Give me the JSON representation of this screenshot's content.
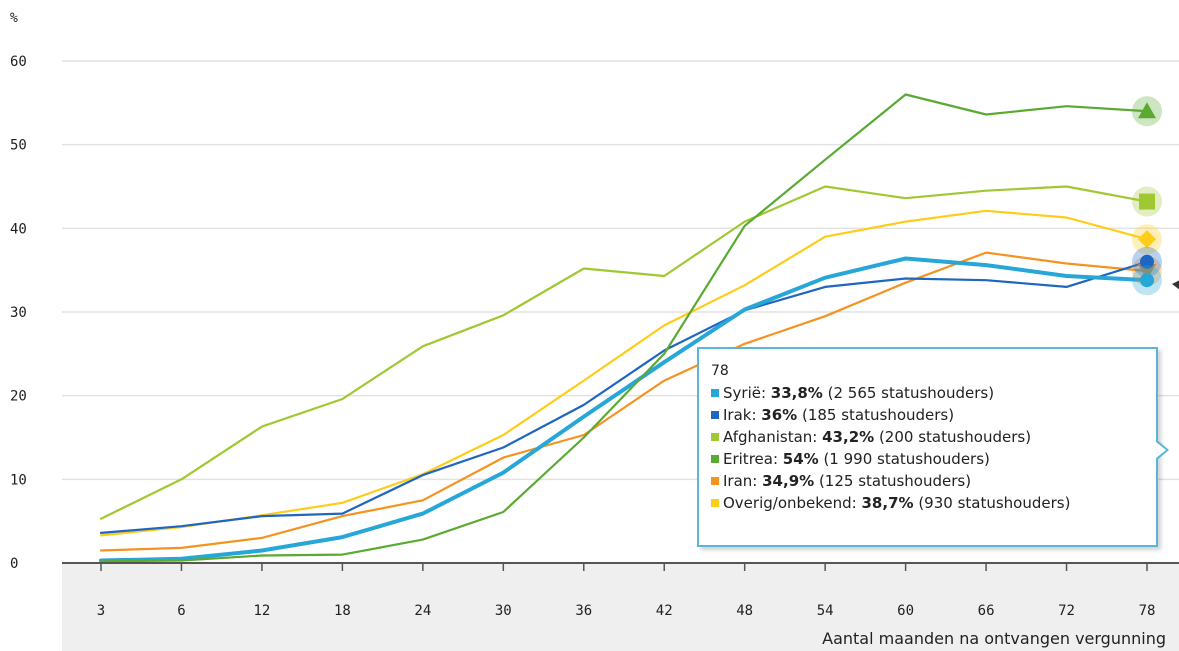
{
  "chart_data": {
    "type": "line",
    "title": "",
    "ylabel": "%",
    "xlabel": "Aantal maanden na ontvangen vergunning",
    "ylim": [
      0,
      60
    ],
    "yticks": [
      0,
      10,
      20,
      30,
      40,
      50,
      60
    ],
    "grid": true,
    "x": [
      3,
      6,
      12,
      18,
      24,
      30,
      36,
      42,
      48,
      54,
      60,
      66,
      72,
      78
    ],
    "series": [
      {
        "name": "Afghanistan",
        "color": "#a0c832",
        "marker": "square",
        "values": [
          5.3,
          10.0,
          16.3,
          19.6,
          25.9,
          29.6,
          35.2,
          34.3,
          40.8,
          45.0,
          43.6,
          44.5,
          45.0,
          43.2
        ]
      },
      {
        "name": "Overig/onbekend",
        "color": "#ffcc1a",
        "marker": "diamond",
        "values": [
          3.3,
          4.3,
          5.7,
          7.2,
          10.6,
          15.3,
          21.8,
          28.4,
          33.2,
          39.0,
          40.8,
          42.1,
          41.3,
          38.7
        ]
      },
      {
        "name": "Iran",
        "color": "#f59321",
        "marker": "triangle-down",
        "values": [
          1.5,
          1.8,
          3.0,
          5.6,
          7.5,
          12.6,
          15.3,
          21.8,
          26.2,
          29.5,
          33.5,
          37.1,
          35.8,
          34.9
        ]
      },
      {
        "name": "Irak",
        "color": "#1e66c1",
        "marker": "circle",
        "values": [
          3.6,
          4.4,
          5.6,
          5.9,
          10.5,
          13.8,
          18.9,
          25.4,
          30.2,
          33.0,
          34.0,
          33.8,
          33.0,
          36.0
        ]
      },
      {
        "name": "Syrië",
        "color": "#27a6d8",
        "marker": "circle",
        "values": [
          0.3,
          0.5,
          1.5,
          3.1,
          5.9,
          10.8,
          17.5,
          24.0,
          30.3,
          34.1,
          36.4,
          35.6,
          34.3,
          33.8
        ]
      },
      {
        "name": "Eritrea",
        "color": "#5aaa32",
        "marker": "triangle-up",
        "values": [
          0.2,
          0.3,
          0.9,
          1.0,
          2.8,
          6.1,
          15.0,
          25.0,
          40.3,
          48.2,
          56.0,
          53.6,
          54.6,
          54.0
        ]
      }
    ]
  },
  "tooltip": {
    "title": "78",
    "rows": [
      {
        "color": "#27a6d8",
        "label": "Syrië: ",
        "value": "33,8%",
        "detail": " (2 565 statushouders)"
      },
      {
        "color": "#1e66c1",
        "label": "Irak: ",
        "value": "36%",
        "detail": " (185 statushouders)"
      },
      {
        "color": "#a0c832",
        "label": "Afghanistan: ",
        "value": "43,2%",
        "detail": " (200 statushouders)"
      },
      {
        "color": "#5aaa32",
        "label": "Eritrea: ",
        "value": "54%",
        "detail": " (1 990 statushouders)"
      },
      {
        "color": "#f59321",
        "label": "Iran: ",
        "value": "34,9%",
        "detail": " (125 statushouders)"
      },
      {
        "color": "#ffcc1a",
        "label": "Overig/onbekend: ",
        "value": "38,7%",
        "detail": " (930 statushouders)"
      }
    ]
  }
}
